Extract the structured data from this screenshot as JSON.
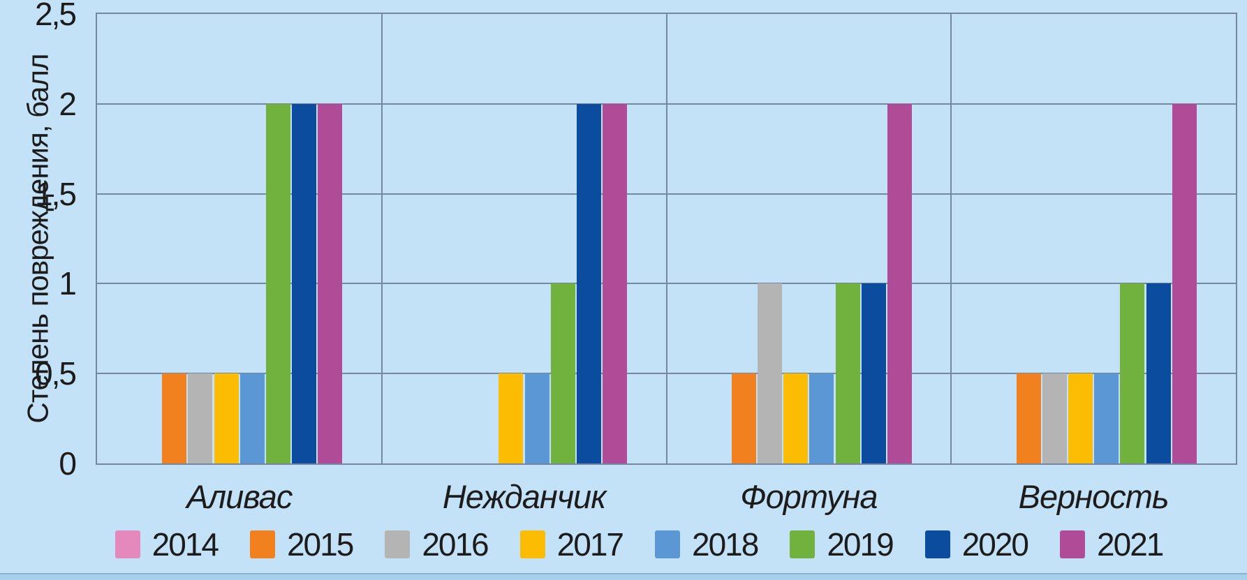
{
  "chart_data": {
    "type": "bar",
    "title": "",
    "ylabel": "Степень повреждения, балл",
    "xlabel": "",
    "ylim": [
      0,
      2.5
    ],
    "ytick_labels": [
      "0",
      "0,5",
      "1",
      "1,5",
      "2",
      "2,5"
    ],
    "ytick_values": [
      0,
      0.5,
      1,
      1.5,
      2,
      2.5
    ],
    "grid": true,
    "legend_position": "bottom",
    "categories": [
      "Аливас",
      "Нежданчик",
      "Фортуна",
      "Верность"
    ],
    "series": [
      {
        "name": "2014",
        "color": "#e589bd",
        "values": [
          0,
          0,
          0,
          0
        ]
      },
      {
        "name": "2015",
        "color": "#f1801f",
        "values": [
          0.5,
          0,
          0.5,
          0.5
        ]
      },
      {
        "name": "2016",
        "color": "#b4b4b4",
        "values": [
          0.5,
          0,
          1,
          0.5
        ]
      },
      {
        "name": "2017",
        "color": "#fcbc04",
        "values": [
          0.5,
          0.5,
          0.5,
          0.5
        ]
      },
      {
        "name": "2018",
        "color": "#5b97d5",
        "values": [
          0.5,
          0.5,
          0.5,
          0.5
        ]
      },
      {
        "name": "2019",
        "color": "#71b13d",
        "values": [
          2,
          1,
          1,
          1
        ]
      },
      {
        "name": "2020",
        "color": "#0c4c9f",
        "values": [
          2,
          2,
          1,
          1
        ]
      },
      {
        "name": "2021",
        "color": "#af4b97",
        "values": [
          2,
          2,
          2,
          2
        ]
      }
    ]
  },
  "colors": {
    "background": "#c3e1f7",
    "gridline": "#73899e",
    "text": "#1c1c1c",
    "bottom_strip": "#a9d0ea"
  }
}
